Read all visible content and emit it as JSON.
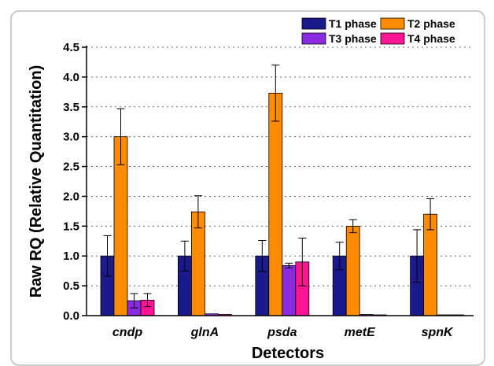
{
  "chart_data": {
    "type": "bar",
    "categories": [
      "cndp",
      "glnA",
      "psda",
      "metE",
      "spnK"
    ],
    "series": [
      {
        "name": "T1 phase",
        "color": "#1a1a8c",
        "values": [
          1.0,
          1.0,
          1.0,
          1.0,
          1.0
        ],
        "errors": [
          0.34,
          0.25,
          0.26,
          0.23,
          0.44
        ]
      },
      {
        "name": "T2 phase",
        "color": "#ff8c00",
        "values": [
          3.0,
          1.74,
          3.73,
          1.5,
          1.7
        ],
        "errors": [
          0.47,
          0.27,
          0.47,
          0.11,
          0.26
        ]
      },
      {
        "name": "T3 phase",
        "color": "#8a2be2",
        "values": [
          0.25,
          0.03,
          0.84,
          0.02,
          0.01
        ],
        "errors": [
          0.12,
          0.0,
          0.04,
          0.0,
          0.0
        ]
      },
      {
        "name": "T4 phase",
        "color": "#ff1493",
        "values": [
          0.26,
          0.02,
          0.9,
          0.01,
          0.01
        ],
        "errors": [
          0.11,
          0.0,
          0.4,
          0.0,
          0.0
        ]
      }
    ],
    "xlabel": "Detectors",
    "ylabel": "Raw RQ (Relative Quantitation)",
    "ylim": [
      0,
      4.5
    ],
    "yticks": [
      "0.0",
      "0.5",
      "1.0",
      "1.5",
      "2.0",
      "2.5",
      "3.0",
      "3.5",
      "4.0",
      "4.5"
    ],
    "grid": "horizontal dotted",
    "legend_position": "top-right"
  }
}
